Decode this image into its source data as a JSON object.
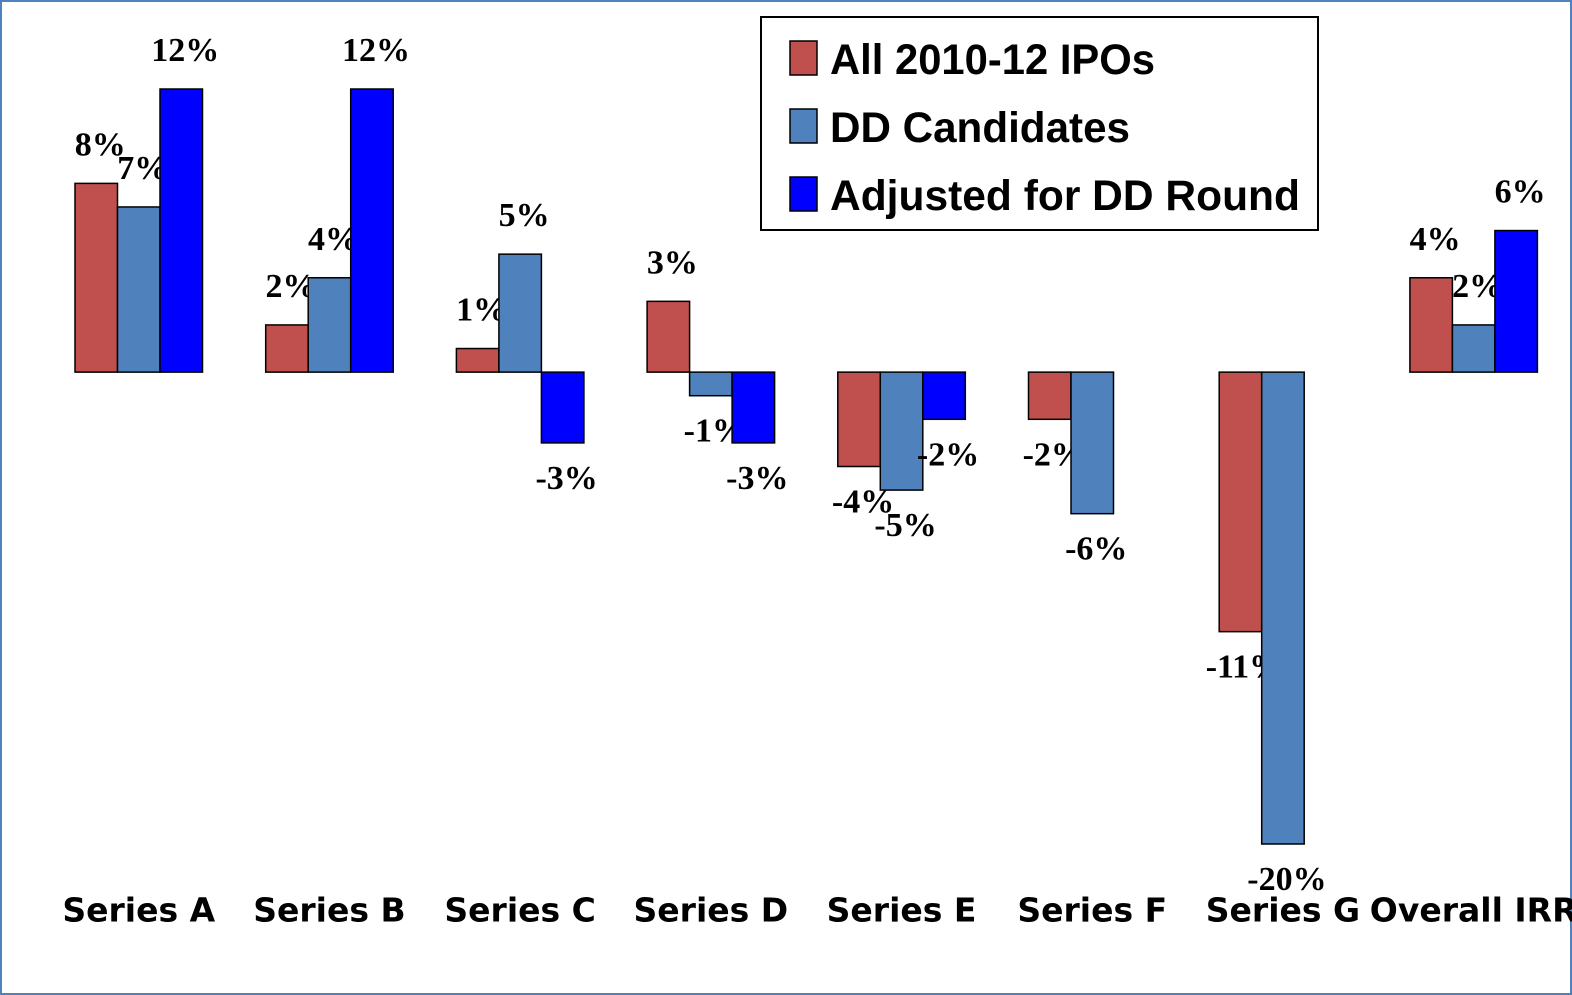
{
  "chart_data": {
    "type": "bar",
    "categories": [
      "Series A",
      "Series B",
      "Series C",
      "Series D",
      "Series E",
      "Series F",
      "Series G",
      "Overall IRR"
    ],
    "series": [
      {
        "name": "All 2010-12 IPOs",
        "color": "#c0504d",
        "values": [
          8,
          2,
          1,
          3,
          -4,
          -2,
          -11,
          4
        ],
        "value_labels": [
          "8%",
          "2%",
          "1%",
          "3%",
          "-4%",
          "-2%",
          "-11%",
          "4%"
        ]
      },
      {
        "name": "DD Candidates",
        "color": "#4f81bd",
        "values": [
          7,
          4,
          5,
          -1,
          -5,
          -6,
          -20,
          2
        ],
        "value_labels": [
          "7%",
          "4%",
          "5%",
          "-1%",
          "-5%",
          "-6%",
          "-20%",
          "2%"
        ]
      },
      {
        "name": "Adjusted for DD Round",
        "color": "#0000ff",
        "values": [
          12,
          12,
          -3,
          -3,
          -2,
          null,
          null,
          6
        ],
        "value_labels": [
          "12%",
          "12%",
          "-3%",
          "-3%",
          "-2%",
          null,
          null,
          "6%"
        ]
      }
    ],
    "legend": "top-right"
  }
}
